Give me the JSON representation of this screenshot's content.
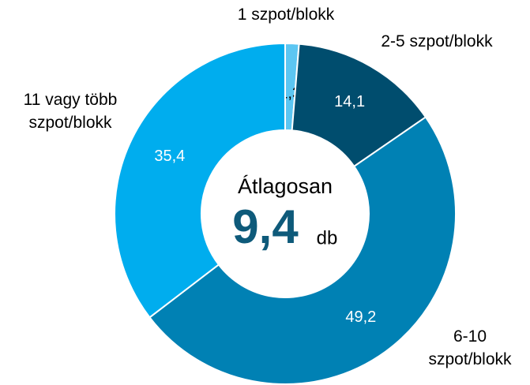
{
  "chart_data": {
    "type": "donut",
    "categories": [
      "1 szpot/blokk",
      "2-5 szpot/blokk",
      "6-10 szpot/blokk",
      "11 vagy több szpot/blokk"
    ],
    "values": [
      1.3,
      14.1,
      49.2,
      35.4
    ],
    "value_labels": [
      "1,3",
      "14,1",
      "49,2",
      "35,4"
    ],
    "colors": [
      "#5cc6f2",
      "#004d6e",
      "#0081b4",
      "#00adee"
    ],
    "label_colors": [
      "#000000",
      "#ffffff",
      "#ffffff",
      "#ffffff"
    ],
    "annotations": [
      "Átlagosan",
      "9,4",
      "db"
    ]
  }
}
